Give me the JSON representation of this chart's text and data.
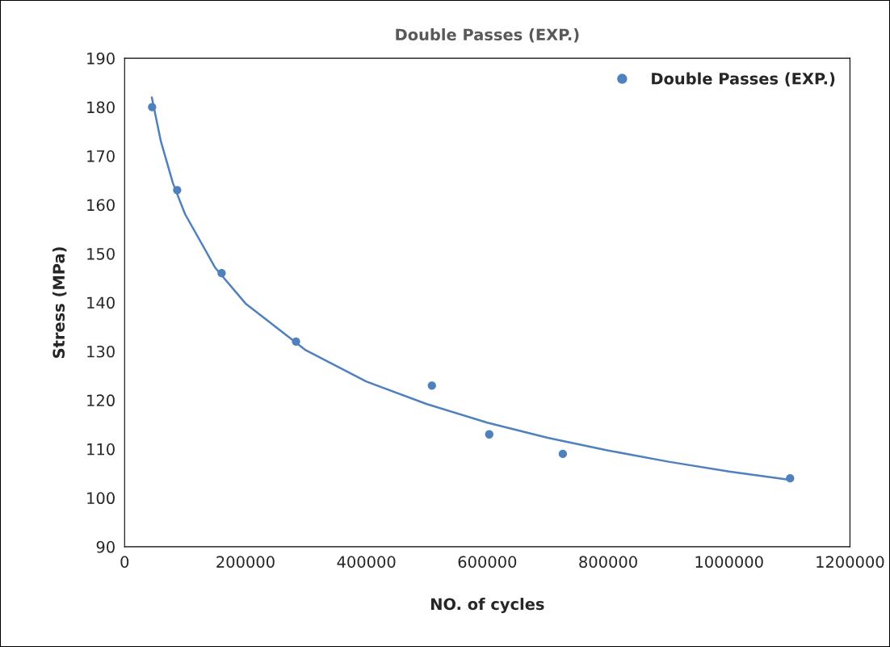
{
  "chart_data": {
    "type": "scatter",
    "title": "Double Passes (EXP.)",
    "xlabel": "NO. of cycles",
    "ylabel": "Stress (MPa)",
    "series": [
      {
        "name": "Double Passes (EXP.)",
        "marker": "circle",
        "color": "#4f81bd",
        "x": [
          45500,
          87000,
          160500,
          283600,
          508400,
          603300,
          725000,
          1101000
        ],
        "values": [
          180,
          163,
          146,
          132,
          123,
          113,
          109,
          104
        ]
      },
      {
        "type": "line",
        "color": "#4f81bd",
        "x": [
          45000,
          60000,
          80000,
          100000,
          150000,
          200000,
          300000,
          400000,
          500000,
          600000,
          700000,
          800000,
          900000,
          1000000,
          1100000
        ],
        "values": [
          182,
          173,
          164.4,
          158.1,
          147.1,
          139.8,
          130.2,
          123.8,
          119.2,
          115.4,
          112.3,
          109.7,
          107.4,
          105.4,
          103.7
        ]
      }
    ],
    "xlim": [
      0,
      1200000
    ],
    "xticks": [
      0,
      200000,
      400000,
      600000,
      800000,
      1000000,
      1200000
    ],
    "ylim": [
      90,
      190
    ],
    "yticks": [
      90,
      100,
      110,
      120,
      130,
      140,
      150,
      160,
      170,
      180,
      190
    ],
    "grid": false,
    "legend": "top right"
  }
}
